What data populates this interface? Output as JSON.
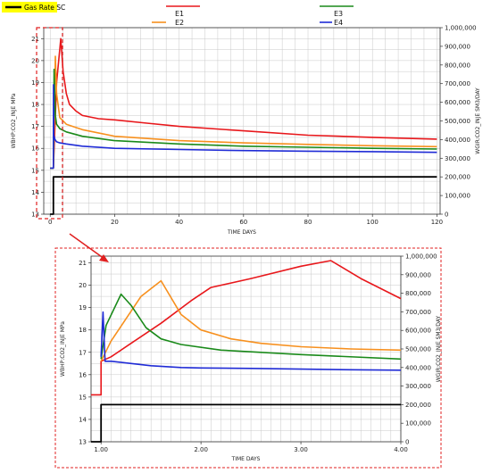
{
  "legend": {
    "highlight_label": "Gas Rate SC",
    "highlight_bg": "#ffff00",
    "series_labels": [
      "E1",
      "E2",
      "E3",
      "E4"
    ]
  },
  "colors": {
    "E1": "#e8171b",
    "E2": "#f7901e",
    "E3": "#1a8a1a",
    "E4": "#1f2bd6",
    "gas": "#000000",
    "annotation": "#e02020",
    "grid": "#c8c8c8"
  },
  "chart_data": [
    {
      "type": "line",
      "name": "overview",
      "xlabel": "TIME  DAYS",
      "ylabel_left": "WBHP:CO2_INJE  MPa",
      "ylabel_right": "WGIR:CO2_INJE  SM3/DAY",
      "xlim": [
        -2,
        121
      ],
      "xticks": [
        0,
        20,
        40,
        60,
        80,
        100,
        120
      ],
      "ylim_left": [
        13,
        21.5
      ],
      "yticks_left": [
        13,
        14,
        15,
        16,
        17,
        18,
        19,
        20,
        21
      ],
      "ylim_right": [
        0,
        1000000
      ],
      "yticks_right": [
        "0",
        "100,000",
        "200,000",
        "300,000",
        "400,000",
        "500,000",
        "600,000",
        "700,000",
        "800,000",
        "900,000",
        "1,000,000"
      ],
      "yticks_right_values": [
        0,
        100000,
        200000,
        300000,
        400000,
        500000,
        600000,
        700000,
        800000,
        900000,
        1000000
      ],
      "series": [
        {
          "name": "E1",
          "axis": "left",
          "x": [
            0,
            1,
            2,
            3.3,
            4,
            5,
            6,
            8,
            10,
            15,
            20,
            30,
            40,
            60,
            80,
            100,
            120
          ],
          "y": [
            15.1,
            15.1,
            19.0,
            21.0,
            19.5,
            18.5,
            18.0,
            17.7,
            17.5,
            17.35,
            17.3,
            17.15,
            17.0,
            16.8,
            16.6,
            16.5,
            16.42
          ]
        },
        {
          "name": "E2",
          "axis": "left",
          "x": [
            0,
            1,
            1.6,
            2,
            3,
            5,
            8,
            10,
            20,
            40,
            60,
            80,
            100,
            120
          ],
          "y": [
            15.1,
            15.1,
            20.2,
            18.5,
            17.4,
            17.1,
            16.95,
            16.85,
            16.55,
            16.35,
            16.25,
            16.18,
            16.12,
            16.08
          ]
        },
        {
          "name": "E3",
          "axis": "left",
          "x": [
            0,
            1,
            1.2,
            1.6,
            2,
            3,
            5,
            10,
            20,
            40,
            60,
            80,
            100,
            120
          ],
          "y": [
            15.1,
            15.1,
            19.6,
            17.5,
            17.1,
            16.9,
            16.75,
            16.55,
            16.35,
            16.2,
            16.1,
            16.05,
            16.0,
            15.97
          ]
        },
        {
          "name": "E4",
          "axis": "left",
          "x": [
            0,
            1,
            1.02,
            1.1,
            1.5,
            2,
            3,
            5,
            10,
            20,
            40,
            60,
            80,
            100,
            120
          ],
          "y": [
            15.1,
            15.1,
            18.9,
            16.6,
            16.4,
            16.3,
            16.25,
            16.2,
            16.1,
            16.0,
            15.95,
            15.9,
            15.87,
            15.85,
            15.82
          ]
        },
        {
          "name": "Gas Rate SC",
          "axis": "right",
          "x": [
            0,
            1,
            1.001,
            120
          ],
          "y": [
            0,
            0,
            200000,
            200000
          ]
        }
      ]
    },
    {
      "type": "line",
      "name": "zoom",
      "xlabel": "TIME  DAYS",
      "ylabel_left": "WBHP:CO2_INJE  MPa",
      "ylabel_right": "WGIR:CO2_INJE  SM3/DAY",
      "xlim": [
        0.9,
        4.0
      ],
      "xticks": [
        1,
        2,
        3,
        4
      ],
      "xticklabels": [
        "1.00",
        "2.00",
        "3.00",
        "4.00"
      ],
      "ylim_left": [
        13,
        21.3
      ],
      "yticks_left": [
        13,
        14,
        15,
        16,
        17,
        18,
        19,
        20,
        21
      ],
      "ylim_right": [
        0,
        1000000
      ],
      "yticks_right": [
        "0",
        "100,000",
        "200,000",
        "300,000",
        "400,000",
        "500,000",
        "600,000",
        "700,000",
        "800,000",
        "900,000",
        "1,000,000"
      ],
      "yticks_right_values": [
        0,
        100000,
        200000,
        300000,
        400000,
        500000,
        600000,
        700000,
        800000,
        900000,
        1000000
      ],
      "series": [
        {
          "name": "E1",
          "axis": "left",
          "x": [
            0.9,
            1.0,
            1.0,
            1.1,
            1.3,
            1.6,
            1.9,
            2.1,
            2.5,
            3.0,
            3.3,
            3.6,
            4.0
          ],
          "y": [
            15.1,
            15.1,
            16.6,
            16.8,
            17.4,
            18.3,
            19.3,
            19.9,
            20.3,
            20.85,
            21.1,
            20.3,
            19.4
          ]
        },
        {
          "name": "E2",
          "axis": "left",
          "x": [
            1.0,
            1.1,
            1.4,
            1.6,
            1.8,
            2.0,
            2.3,
            2.6,
            3.0,
            3.5,
            4.0
          ],
          "y": [
            16.6,
            17.5,
            19.5,
            20.2,
            18.7,
            18.0,
            17.6,
            17.4,
            17.25,
            17.15,
            17.1
          ]
        },
        {
          "name": "E3",
          "axis": "left",
          "x": [
            1.0,
            1.05,
            1.2,
            1.3,
            1.45,
            1.6,
            1.8,
            2.2,
            3.0,
            4.0
          ],
          "y": [
            16.7,
            18.2,
            19.6,
            19.1,
            18.1,
            17.6,
            17.35,
            17.1,
            16.9,
            16.7
          ]
        },
        {
          "name": "E4",
          "axis": "left",
          "x": [
            1.0,
            1.02,
            1.04,
            1.1,
            1.5,
            1.8,
            2.0,
            2.5,
            3.0,
            3.5,
            4.0
          ],
          "y": [
            16.8,
            18.8,
            16.6,
            16.6,
            16.4,
            16.32,
            16.3,
            16.28,
            16.25,
            16.22,
            16.2
          ]
        },
        {
          "name": "Gas Rate SC",
          "axis": "right",
          "x": [
            0.9,
            1.0,
            1.0,
            4.0
          ],
          "y": [
            0,
            0,
            200000,
            200000
          ]
        }
      ]
    }
  ]
}
